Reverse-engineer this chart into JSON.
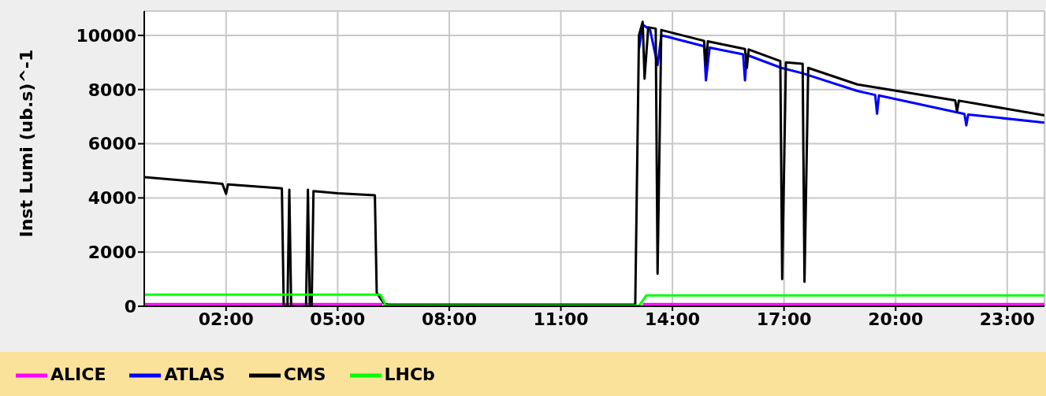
{
  "chart_data": {
    "type": "line",
    "ylabel": "Inst Lumi (ub.s)^-1",
    "xlim": [
      -0.2,
      24
    ],
    "xticks": [
      {
        "value": 2,
        "label": "02:00"
      },
      {
        "value": 5,
        "label": "05:00"
      },
      {
        "value": 8,
        "label": "08:00"
      },
      {
        "value": 11,
        "label": "11:00"
      },
      {
        "value": 14,
        "label": "14:00"
      },
      {
        "value": 17,
        "label": "17:00"
      },
      {
        "value": 20,
        "label": "20:00"
      },
      {
        "value": 23,
        "label": "23:00"
      }
    ],
    "ylim": [
      0,
      10900
    ],
    "yticks": [
      0,
      2000,
      4000,
      6000,
      8000,
      10000
    ],
    "grid": true,
    "legend": "bottom",
    "marker": "none",
    "line_style": "solid",
    "series": [
      {
        "name": "ATLAS",
        "color": "#0000ff",
        "x": [
          13.1,
          13.2,
          13.4,
          13.6,
          13.7,
          13.87,
          14.85,
          14.9,
          15.0,
          15.9,
          15.95,
          16.0,
          16.93,
          17.5,
          18.97,
          19.45,
          19.5,
          19.55,
          21.85,
          21.9,
          21.95,
          24
        ],
        "values": [
          9500,
          10400,
          10200,
          8900,
          10000,
          9950,
          9600,
          8340,
          9550,
          9300,
          8340,
          9280,
          8800,
          8600,
          7950,
          7800,
          7110,
          7780,
          7100,
          6680,
          7080,
          6780
        ]
      },
      {
        "name": "ALICE",
        "color": "#ff00ff",
        "x": [
          -0.2,
          6.2,
          6.3,
          13.2,
          24
        ],
        "values": [
          80,
          80,
          null,
          80,
          80
        ]
      },
      {
        "name": "CMS",
        "color": "#000000",
        "x": [
          -0.2,
          1.9,
          2.0,
          2.05,
          3.5,
          3.55,
          3.65,
          3.7,
          3.75,
          4.15,
          4.2,
          4.25,
          4.3,
          4.35,
          5.0,
          6.0,
          6.05,
          6.25,
          6.35,
          13.0,
          13.1,
          13.2,
          13.25,
          13.35,
          13.55,
          13.6,
          13.7,
          14.85,
          14.9,
          14.95,
          15.95,
          16.0,
          16.05,
          16.9,
          16.95,
          17.05,
          17.5,
          17.55,
          17.65,
          18.97,
          21.6,
          21.65,
          21.7,
          24
        ],
        "values": [
          4770,
          4520,
          4150,
          4500,
          4350,
          0,
          0,
          4300,
          0,
          0,
          4300,
          0,
          0,
          4250,
          4170,
          4100,
          500,
          100,
          60,
          60,
          10000,
          10500,
          8400,
          10300,
          10250,
          1200,
          10200,
          9800,
          8900,
          9780,
          9500,
          8800,
          9480,
          9050,
          1000,
          9000,
          8950,
          900,
          8800,
          8190,
          7600,
          7200,
          7590,
          7050
        ]
      },
      {
        "name": "LHCb",
        "color": "#00ff00",
        "x": [
          -0.2,
          6.15,
          6.3,
          13.1,
          13.3,
          24
        ],
        "values": [
          430,
          430,
          20,
          20,
          400,
          400
        ]
      }
    ]
  }
}
